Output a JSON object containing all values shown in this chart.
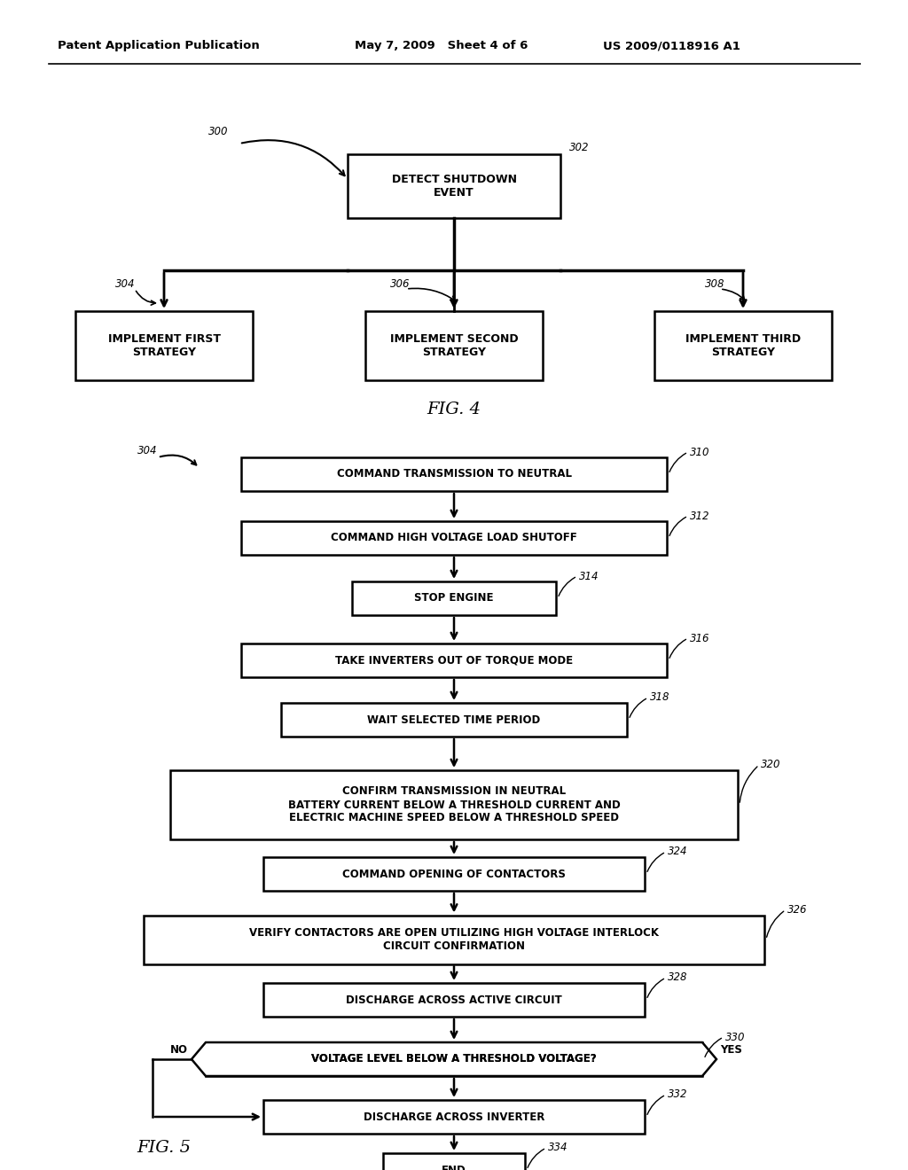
{
  "header_left": "Patent Application Publication",
  "header_middle": "May 7, 2009   Sheet 4 of 6",
  "header_right": "US 2009/0118916 A1",
  "bg_color": "#ffffff"
}
